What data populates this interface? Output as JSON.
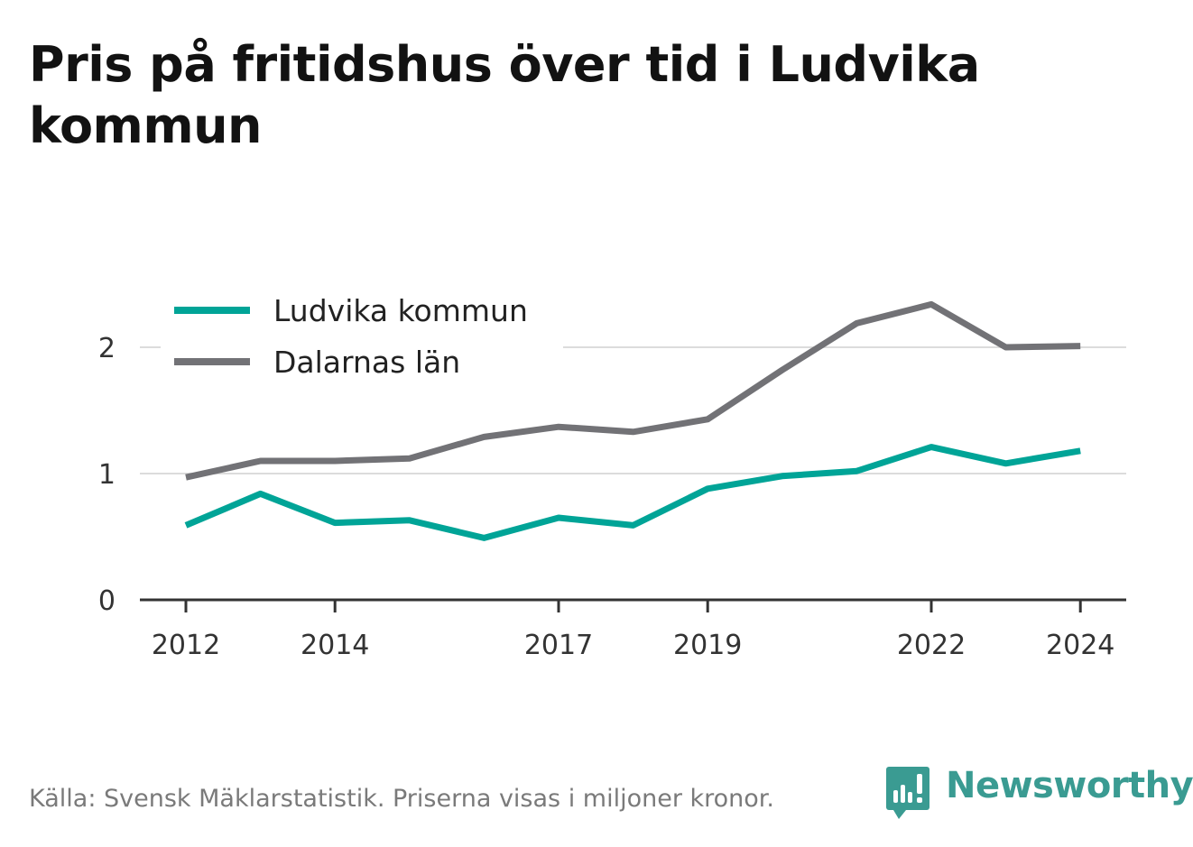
{
  "title": "Pris på fritidshus över tid i Ludvika kommun",
  "source": "Källa: Svensk Mäklarstatistik. Priserna visas i miljoner kronor.",
  "brand": {
    "name": "Newsworthy",
    "color": "#3a9b92"
  },
  "chart_data": {
    "type": "line",
    "x": [
      2012,
      2013,
      2014,
      2015,
      2016,
      2017,
      2018,
      2019,
      2020,
      2021,
      2022,
      2023,
      2024
    ],
    "x_tick_labels": [
      "2012",
      "2014",
      "2017",
      "2019",
      "2022",
      "2024"
    ],
    "y_ticks": [
      0,
      1,
      2
    ],
    "ylim": [
      0,
      2.45
    ],
    "grid": "horizontal",
    "legend_position": "top-left",
    "series": [
      {
        "name": "Ludvika kommun",
        "color": "#00a497",
        "values": [
          0.59,
          0.84,
          0.61,
          0.63,
          0.49,
          0.65,
          0.59,
          0.88,
          0.98,
          1.02,
          1.21,
          1.08,
          1.18
        ]
      },
      {
        "name": "Dalarnas län",
        "color": "#727276",
        "values": [
          0.97,
          1.1,
          1.1,
          1.12,
          1.29,
          1.37,
          1.33,
          1.43,
          1.82,
          2.19,
          2.34,
          2.0,
          2.01
        ]
      }
    ]
  }
}
